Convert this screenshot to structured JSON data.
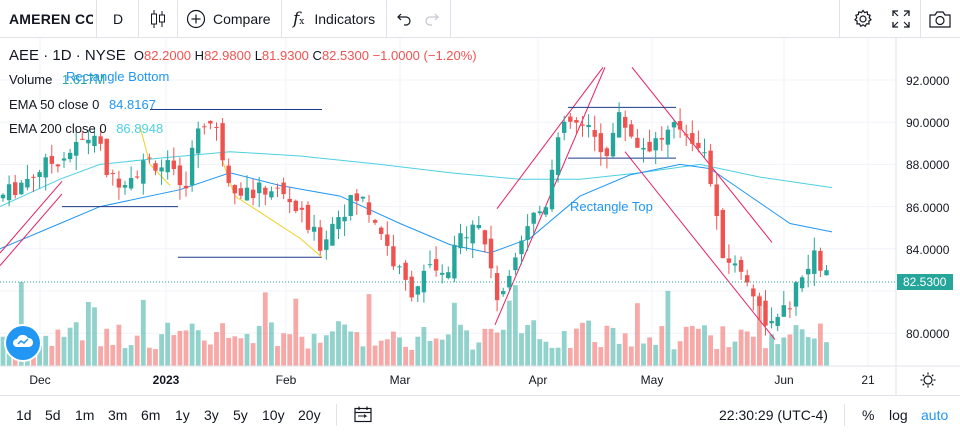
{
  "toolbar": {
    "symbol": "AMEREN CC",
    "interval": "D",
    "compare_label": "Compare",
    "indicators_label": "Indicators"
  },
  "legend": {
    "ticker": "AEE",
    "interval": "1D",
    "exchange": "NYSE",
    "o_label": "O",
    "o_value": "82.2000",
    "h_label": "H",
    "h_value": "82.9800",
    "l_label": "L",
    "l_value": "81.9300",
    "c_label": "C",
    "c_value": "82.5300",
    "change": "−1.0000 (−1.20%)",
    "volume_label": "Volume",
    "volume_value": "1.617M",
    "ema50_label": "EMA 50 close 0",
    "ema50_value": "84.8167",
    "ema200_label": "EMA 200 close 0",
    "ema200_value": "86.8948"
  },
  "drawings": {
    "rect_bottom": "Rectangle Bottom",
    "rect_top": "Rectangle Top"
  },
  "yaxis": {
    "ticks": [
      "92.0000",
      "90.0000",
      "88.0000",
      "86.0000",
      "84.0000",
      "80.0000"
    ],
    "last_price": "82.5300"
  },
  "xaxis": {
    "ticks": [
      "Dec",
      "2023",
      "Feb",
      "Mar",
      "Apr",
      "May",
      "Jun",
      "21"
    ]
  },
  "bottom": {
    "ranges": [
      "1d",
      "5d",
      "1m",
      "3m",
      "6m",
      "1y",
      "3y",
      "5y",
      "10y",
      "20y"
    ],
    "time": "22:30:29 (UTC-4)",
    "percent": "%",
    "log": "log",
    "auto": "auto"
  },
  "colors": {
    "up": "#26a69a",
    "down": "#ef5350",
    "accent": "#2196f3",
    "ema50": "#2196f3",
    "ema200": "#4dd0e1",
    "trend": "#e91e63"
  }
}
